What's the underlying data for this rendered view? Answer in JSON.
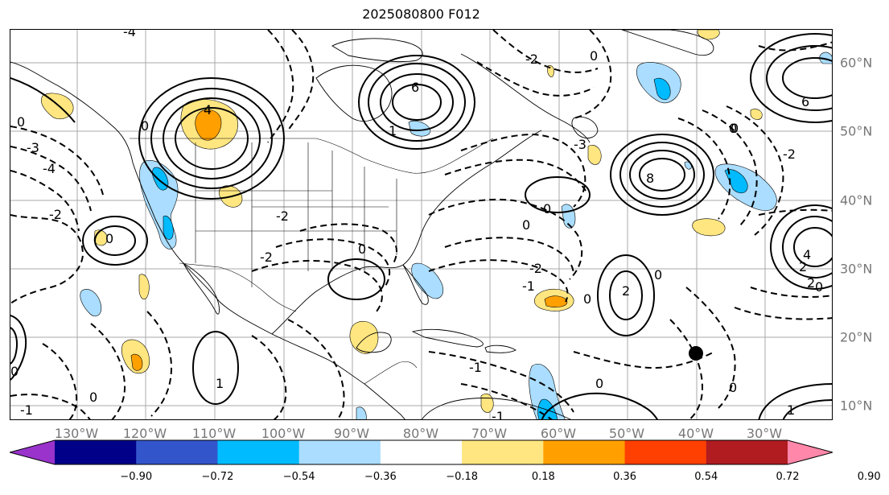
{
  "title": "2025080800 F012",
  "map": {
    "lon_labels": [
      "130°W",
      "120°W",
      "110°W",
      "100°W",
      "90°W",
      "80°W",
      "70°W",
      "60°W",
      "50°W",
      "40°W",
      "30°W"
    ],
    "lat_labels": [
      "60°N",
      "50°N",
      "40°N",
      "30°N",
      "20°N",
      "10°N"
    ],
    "marker": "storm-center-dot",
    "contour_labels": [
      "-4",
      "-3",
      "-2",
      "-1",
      "0",
      "1",
      "2",
      "3",
      "4",
      "6",
      "8"
    ]
  },
  "colorbar": {
    "ticks": [
      "−0.90",
      "−0.72",
      "−0.54",
      "−0.36",
      "−0.18",
      "0.18",
      "0.36",
      "0.54",
      "0.72",
      "0.90"
    ],
    "colors": [
      "#9933cc",
      "#000088",
      "#3355cc",
      "#00bbff",
      "#aaddff",
      "#ffffff",
      "#ffe680",
      "#ffa000",
      "#ff4000",
      "#b01c20",
      "#ff88aa"
    ],
    "extend": "both"
  },
  "colors": {
    "positive_fill_light": "#ffe680",
    "positive_fill_dark": "#ffa000",
    "negative_fill_light": "#aaddff",
    "negative_fill_dark": "#00bbff",
    "contour": "#000000",
    "grid": "#aaaaaa"
  }
}
